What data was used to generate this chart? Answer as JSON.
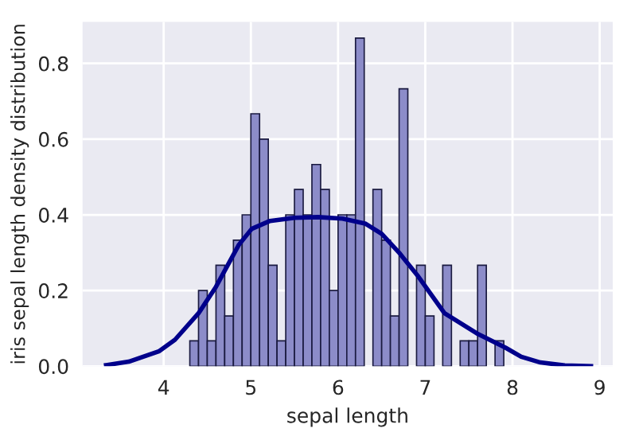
{
  "chart_data": {
    "type": "histogram",
    "xlabel": "sepal length",
    "ylabel": "iris sepal length density distribution",
    "bins": [
      4.3,
      4.4,
      4.5,
      4.6,
      4.7,
      4.8,
      4.9,
      5.0,
      5.1,
      5.2,
      5.3,
      5.4,
      5.5,
      5.6,
      5.7,
      5.8,
      5.9,
      6.0,
      6.1,
      6.2,
      6.3,
      6.4,
      6.5,
      6.6,
      6.7,
      6.8,
      6.9,
      7.0,
      7.1,
      7.2,
      7.3,
      7.4,
      7.5,
      7.6,
      7.7,
      7.8,
      7.9
    ],
    "series": [
      {
        "color": "#8c8cc9",
        "values": [
          0.067,
          0.2,
          0.067,
          0.267,
          0.133,
          0.333,
          0.4,
          0.667,
          0.6,
          0.267,
          0.067,
          0.4,
          0.467,
          0.4,
          0.533,
          0.467,
          0.2,
          0.4,
          0.4,
          0.867,
          0,
          0.467,
          0.333,
          0.133,
          0.733,
          0,
          0.267,
          0.133,
          0,
          0.267,
          0,
          0.067,
          0.067,
          0.267,
          0,
          0.067
        ]
      },
      {
        "type": "line",
        "color": "#00008b",
        "x": [
          3.34,
          3.6,
          3.95,
          4.13,
          4.4,
          4.6,
          4.86,
          5.01,
          5.22,
          5.5,
          5.77,
          6.05,
          6.31,
          6.5,
          6.7,
          6.92,
          7.22,
          7.59,
          7.92,
          8.1,
          8.32,
          8.6,
          8.9
        ],
        "values": [
          0.003,
          0.012,
          0.04,
          0.07,
          0.14,
          0.21,
          0.32,
          0.363,
          0.384,
          0.392,
          0.394,
          0.39,
          0.377,
          0.35,
          0.3,
          0.237,
          0.14,
          0.087,
          0.049,
          0.025,
          0.01,
          0.002,
          0.0
        ]
      }
    ],
    "xlim": [
      3.07,
      9.15
    ],
    "ylim": [
      0,
      0.91
    ],
    "xticks": [
      4,
      5,
      6,
      7,
      8,
      9
    ],
    "yticks": [
      {
        "value": 0,
        "label": "0.0"
      },
      {
        "value": 0.2,
        "label": "0.2"
      },
      {
        "value": 0.4,
        "label": "0.4"
      },
      {
        "value": 0.6,
        "label": "0.6"
      },
      {
        "value": 0.8,
        "label": "0.8"
      }
    ],
    "grid": true
  }
}
